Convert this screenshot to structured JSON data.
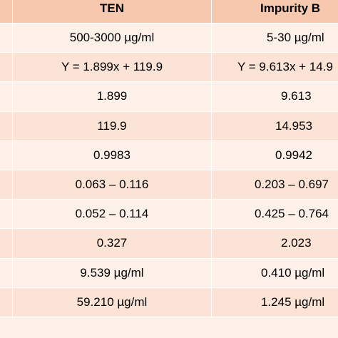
{
  "table": {
    "headers": [
      "TEN",
      "Impurity B"
    ],
    "rows": [
      [
        "500-3000 µg/ml",
        "5-30 µg/ml"
      ],
      [
        "Y = 1.899x + 119.9",
        "Y = 9.613x + 14.9"
      ],
      [
        "1.899",
        "9.613"
      ],
      [
        "119.9",
        "14.953"
      ],
      [
        "0.9983",
        "0.9942"
      ],
      [
        "0.063 – 0.116",
        "0.203 – 0.697"
      ],
      [
        "0.052 – 0.114",
        "0.425 – 0.764"
      ],
      [
        "0.327",
        "2.023"
      ],
      [
        "9.539 µg/ml",
        "0.410 µg/ml"
      ],
      [
        "59.210 µg/ml",
        "1.245 µg/ml"
      ]
    ]
  },
  "colors": {
    "header_bg": "#f6c9ae",
    "row_alt_bg": "#fbe3d5",
    "row_plain_bg": "#fdf0e8",
    "grid_line": "#ffffff"
  }
}
